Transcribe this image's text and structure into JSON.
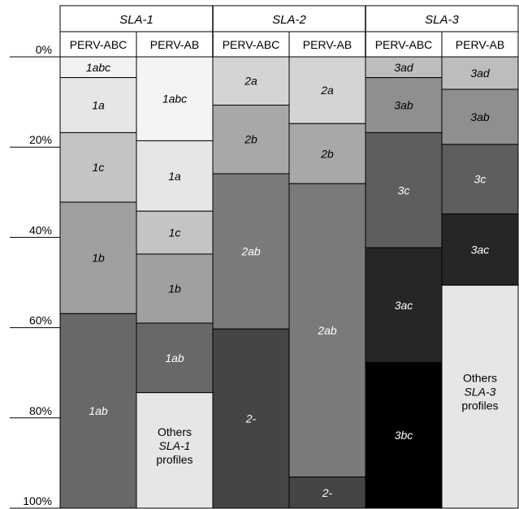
{
  "chart_data": {
    "type": "bar",
    "stacked": true,
    "orientation": "vertical",
    "y_ticks": [
      "0%",
      "20%",
      "40%",
      "60%",
      "80%",
      "100%"
    ],
    "ylim": [
      0,
      100
    ],
    "groups": [
      {
        "name": "SLA-1",
        "columns": [
          {
            "name": "PERV-ABC",
            "segments": [
              {
                "label": "1abc",
                "value": 4.6,
                "color": "#f2f2f2"
              },
              {
                "label": "1a",
                "value": 12.2,
                "color": "#e6e6e6"
              },
              {
                "label": "1c",
                "value": 15.4,
                "color": "#c4c4c4"
              },
              {
                "label": "1b",
                "value": 24.7,
                "color": "#a0a0a0"
              },
              {
                "label": "1ab",
                "value": 43.1,
                "color": "#686868"
              }
            ]
          },
          {
            "name": "PERV-AB",
            "segments": [
              {
                "label": "1abc",
                "value": 18.6,
                "color": "#f4f4f4"
              },
              {
                "label": "1a",
                "value": 15.6,
                "color": "#e6e6e6"
              },
              {
                "label": "1c",
                "value": 9.5,
                "color": "#c4c4c4"
              },
              {
                "label": "1b",
                "value": 15.3,
                "color": "#a0a0a0"
              },
              {
                "label": "1ab",
                "value": 15.4,
                "color": "#686868"
              },
              {
                "label": "Others SLA-1 profiles",
                "value": 25.6,
                "color": "#e6e6e6"
              }
            ]
          }
        ]
      },
      {
        "name": "SLA-2",
        "columns": [
          {
            "name": "PERV-ABC",
            "segments": [
              {
                "label": "2a",
                "value": 10.7,
                "color": "#d4d4d4"
              },
              {
                "label": "2b",
                "value": 15.2,
                "color": "#a8a8a8"
              },
              {
                "label": "2ab",
                "value": 34.4,
                "color": "#7a7a7a"
              },
              {
                "label": "2-",
                "value": 39.7,
                "color": "#454545"
              }
            ]
          },
          {
            "name": "PERV-AB",
            "segments": [
              {
                "label": "2a",
                "value": 14.8,
                "color": "#d4d4d4"
              },
              {
                "label": "2b",
                "value": 13.3,
                "color": "#a8a8a8"
              },
              {
                "label": "2ab",
                "value": 65.0,
                "color": "#7a7a7a"
              },
              {
                "label": "2-",
                "value": 6.9,
                "color": "#454545"
              }
            ]
          }
        ]
      },
      {
        "name": "SLA-3",
        "columns": [
          {
            "name": "PERV-ABC",
            "segments": [
              {
                "label": "3ad",
                "value": 4.6,
                "color": "#bdbdbd"
              },
              {
                "label": "3ab",
                "value": 12.2,
                "color": "#8f8f8f"
              },
              {
                "label": "3c",
                "value": 25.5,
                "color": "#5e5e5e"
              },
              {
                "label": "3ac",
                "value": 25.4,
                "color": "#262626"
              },
              {
                "label": "3bc",
                "value": 32.3,
                "color": "#000000"
              }
            ]
          },
          {
            "name": "PERV-AB",
            "segments": [
              {
                "label": "3ad",
                "value": 7.2,
                "color": "#bdbdbd"
              },
              {
                "label": "3ab",
                "value": 12.2,
                "color": "#8f8f8f"
              },
              {
                "label": "3c",
                "value": 15.4,
                "color": "#5e5e5e"
              },
              {
                "label": "3ac",
                "value": 15.8,
                "color": "#262626"
              },
              {
                "label": "Others SLA-3 profiles",
                "value": 49.4,
                "color": "#e6e6e6"
              }
            ]
          }
        ]
      }
    ]
  }
}
